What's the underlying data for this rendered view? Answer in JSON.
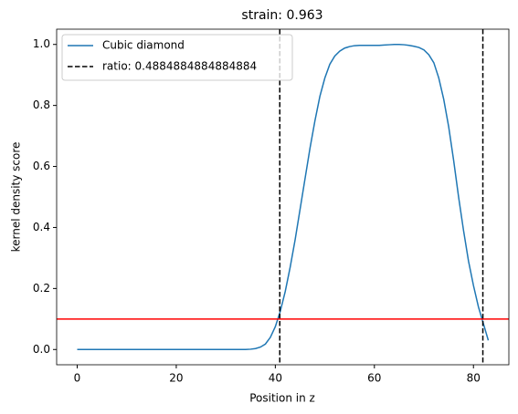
{
  "chart_data": {
    "type": "line",
    "title": "strain: 0.963",
    "xlabel": "Position in z",
    "ylabel": "kernel density score",
    "series": [
      {
        "name": "Cubic diamond",
        "color": "#1f77b4",
        "x": [
          0,
          1,
          2,
          3,
          4,
          5,
          6,
          7,
          8,
          9,
          10,
          11,
          12,
          13,
          14,
          15,
          16,
          17,
          18,
          19,
          20,
          21,
          22,
          23,
          24,
          25,
          26,
          27,
          28,
          29,
          30,
          31,
          32,
          33,
          34,
          35,
          36,
          37,
          38,
          39,
          40,
          41,
          42,
          43,
          44,
          45,
          46,
          47,
          48,
          49,
          50,
          51,
          52,
          53,
          54,
          55,
          56,
          57,
          58,
          59,
          60,
          61,
          62,
          63,
          64,
          65,
          66,
          67,
          68,
          69,
          70,
          71,
          72,
          73,
          74,
          75,
          76,
          77,
          78,
          79,
          80,
          81,
          82,
          83
        ],
        "values": [
          0,
          0,
          0,
          0,
          0,
          0,
          0,
          0,
          0,
          0,
          0,
          0,
          0,
          0,
          0,
          0,
          0,
          0,
          0,
          0,
          0,
          0,
          0,
          0,
          0,
          0,
          0,
          0,
          0,
          0,
          0,
          0,
          0,
          0,
          0,
          0.001,
          0.003,
          0.008,
          0.018,
          0.04,
          0.075,
          0.125,
          0.19,
          0.27,
          0.36,
          0.46,
          0.56,
          0.66,
          0.75,
          0.83,
          0.89,
          0.935,
          0.962,
          0.978,
          0.988,
          0.993,
          0.996,
          0.997,
          0.997,
          0.997,
          0.997,
          0.997,
          0.998,
          0.999,
          1.0,
          1.0,
          0.999,
          0.997,
          0.994,
          0.99,
          0.982,
          0.966,
          0.94,
          0.89,
          0.82,
          0.73,
          0.62,
          0.5,
          0.39,
          0.29,
          0.21,
          0.14,
          0.085,
          0.03
        ]
      }
    ],
    "vlines": {
      "name": "ratio: 0.4884884884884884",
      "color": "#000000",
      "values": [
        40.9,
        81.9
      ]
    },
    "hline": {
      "value": 0.1,
      "color": "#ff0000"
    },
    "xlim": [
      -4.15,
      87.15
    ],
    "xticks": [
      0,
      20,
      40,
      60,
      80
    ],
    "ylim": [
      -0.05,
      1.05
    ],
    "yticks": [
      {
        "value": 0,
        "label": "0.0"
      },
      0.2,
      0.4,
      0.6,
      0.8,
      {
        "value": 1,
        "label": "1.0"
      }
    ],
    "legend": "upper left"
  }
}
